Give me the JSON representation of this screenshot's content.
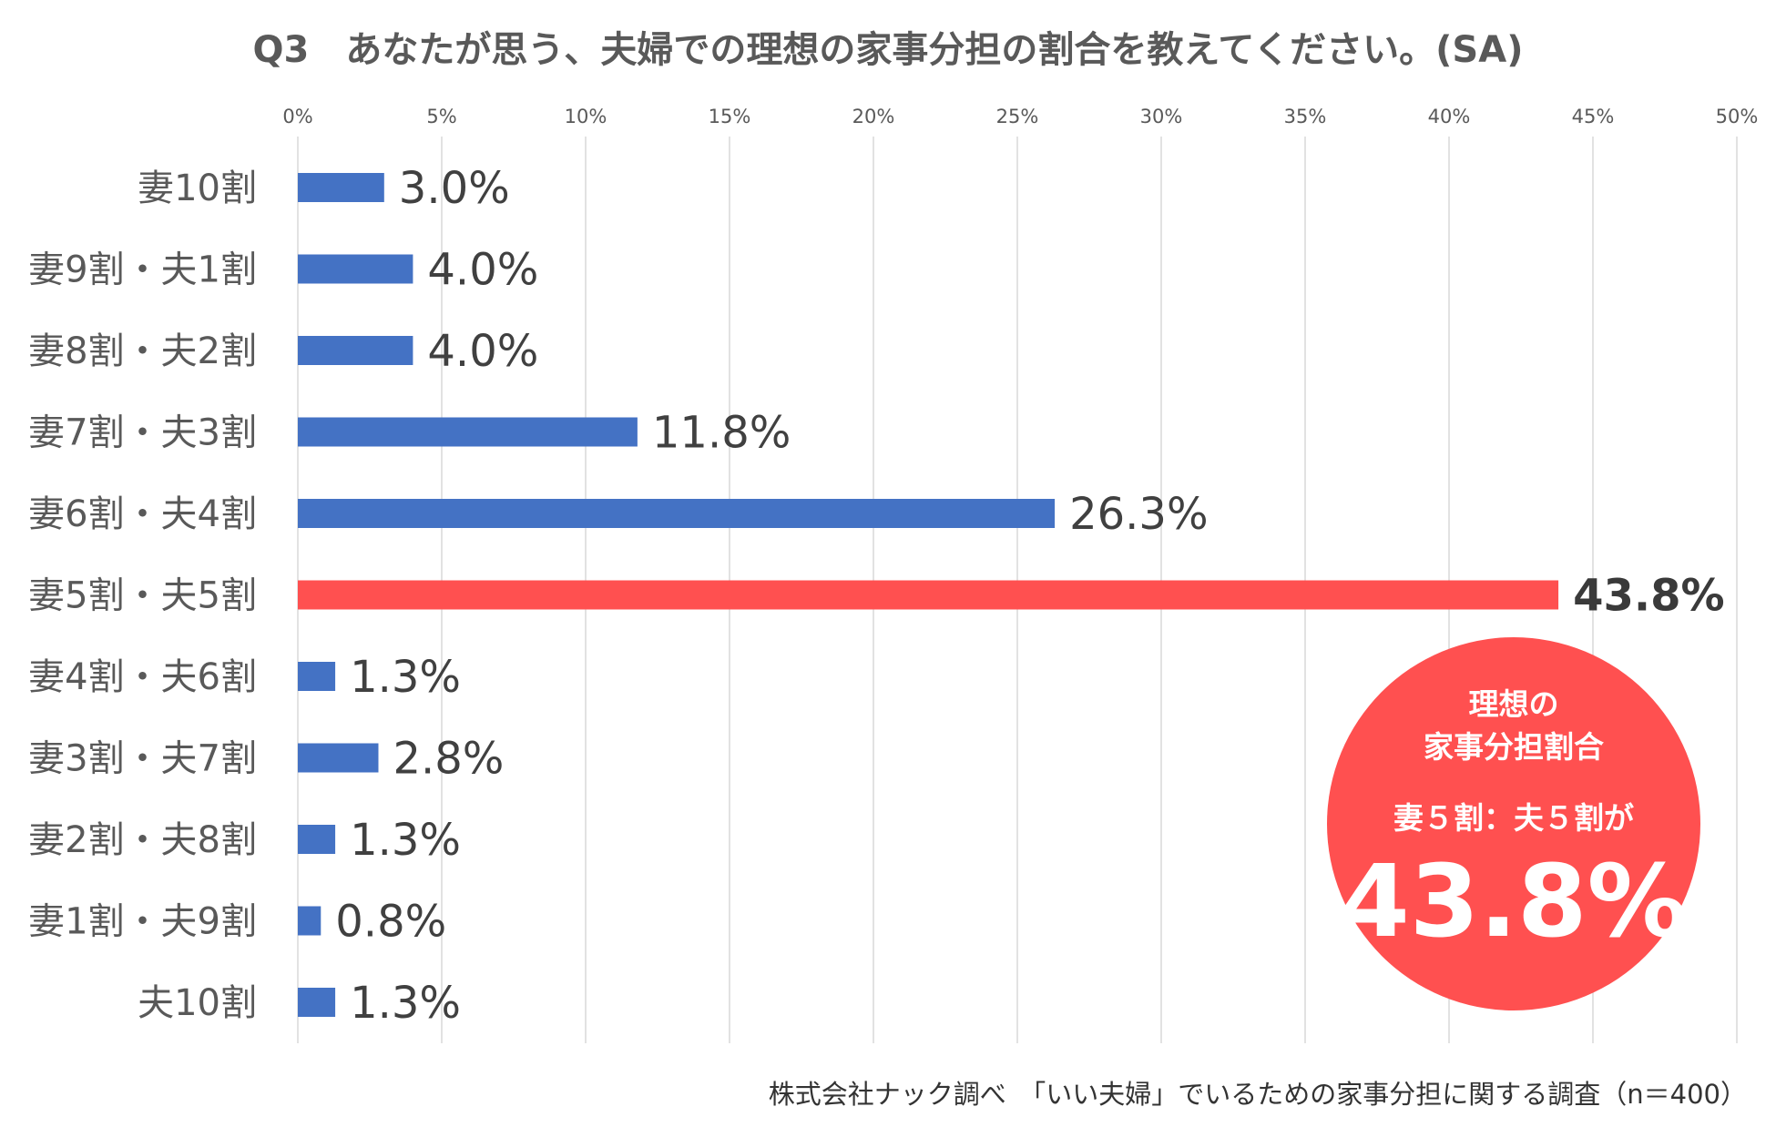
{
  "chart_data": {
    "type": "bar",
    "orientation": "horizontal",
    "title": "Q3　あなたが思う、夫婦での理想の家事分担の割合を教えてください。(SA)",
    "xlim": [
      0,
      50
    ],
    "xticks": [
      "0%",
      "5%",
      "10%",
      "15%",
      "20%",
      "25%",
      "30%",
      "35%",
      "40%",
      "45%",
      "50%"
    ],
    "tick_values": [
      0,
      5,
      10,
      15,
      20,
      25,
      30,
      35,
      40,
      45,
      50
    ],
    "grid": true,
    "categories": [
      "妻10割",
      "妻9割・夫1割",
      "妻8割・夫2割",
      "妻7割・夫3割",
      "妻6割・夫4割",
      "妻5割・夫5割",
      "妻4割・夫6割",
      "妻3割・夫7割",
      "妻2割・夫8割",
      "妻1割・夫9割",
      "夫10割"
    ],
    "values": [
      3.0,
      4.0,
      4.0,
      11.8,
      26.3,
      43.8,
      1.3,
      2.8,
      1.3,
      0.8,
      1.3
    ],
    "value_labels": [
      "3.0%",
      "4.0%",
      "4.0%",
      "11.8%",
      "26.3%",
      "43.8%",
      "1.3%",
      "2.8%",
      "1.3%",
      "0.8%",
      "1.3%"
    ],
    "highlight_index": 5,
    "colors": {
      "bar": "#4472c4",
      "highlight": "#ff5050",
      "badge": "#ff5050"
    },
    "annotation": {
      "line1": "理想の",
      "line2": "家事分担割合",
      "line3": "妻５割：夫５割が",
      "value": "43.8%"
    },
    "source": "株式会社ナック調べ　「いい夫婦」でいるための家事分担に関する調査（n＝400）"
  }
}
